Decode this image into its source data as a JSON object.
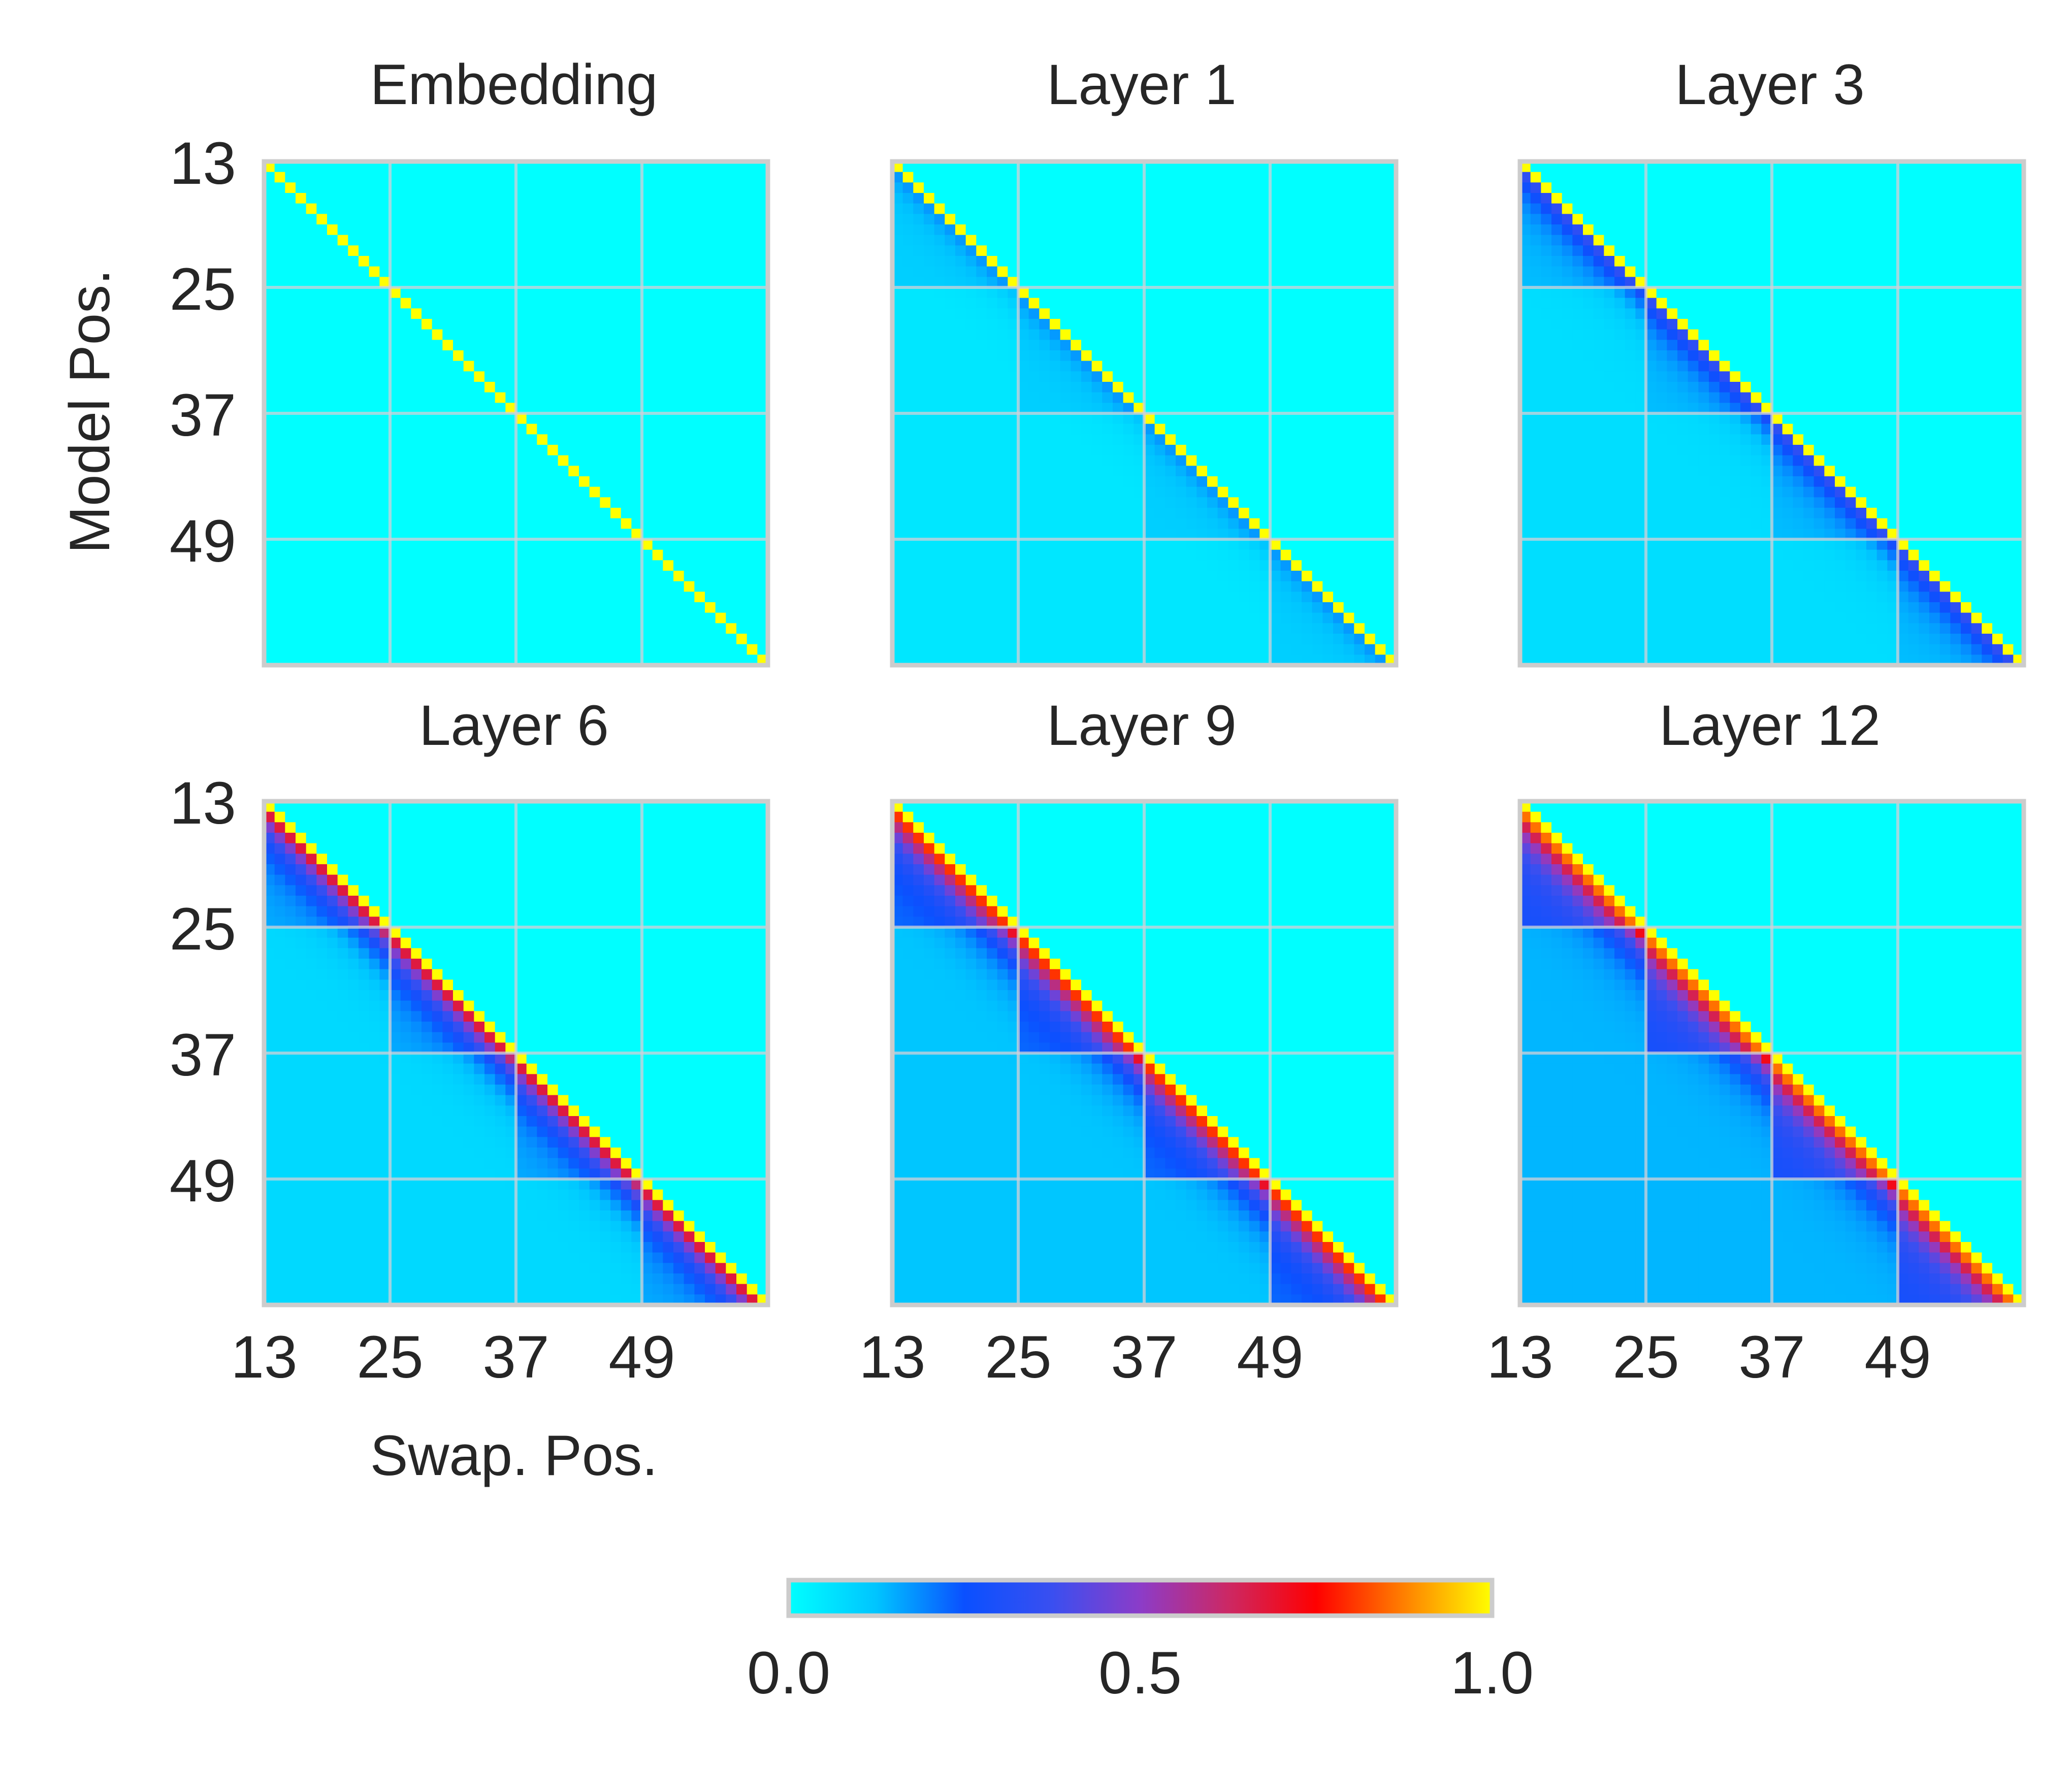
{
  "colors": {
    "background": "#ffffff",
    "frame": "#cccccc",
    "grid": "#d0d0d8",
    "text": "#262626",
    "colormap": [
      "#00ffff",
      "#00c4ff",
      "#0a50ff",
      "#3a4ff0",
      "#8c3cc8",
      "#cc2864",
      "#ff0000",
      "#ff8000",
      "#ffff00"
    ]
  },
  "chart_data": {
    "type": "heatmap",
    "x_label": "Swap. Pos.",
    "y_label": "Model Pos.",
    "positions_range": [
      13,
      60
    ],
    "x_ticks": [
      "13",
      "25",
      "37",
      "49"
    ],
    "y_ticks": [
      "13",
      "25",
      "37",
      "49"
    ],
    "colorbar": {
      "range": [
        0.0,
        1.0
      ],
      "ticks": [
        "0.0",
        "0.5",
        "1.0"
      ]
    },
    "panels": [
      {
        "title": "Embedding",
        "diag": 1.0,
        "near": 0.0,
        "far": 0.0,
        "block": 0.0
      },
      {
        "title": "Layer 1",
        "diag": 1.0,
        "near": 0.12,
        "far": 0.05,
        "block": 0.05
      },
      {
        "title": "Layer 3",
        "diag": 1.0,
        "near": 0.28,
        "far": 0.07,
        "block": 0.06
      },
      {
        "title": "Layer 6",
        "diag": 1.0,
        "near": 0.6,
        "far": 0.08,
        "block": 0.07
      },
      {
        "title": "Layer 9",
        "diag": 1.0,
        "near": 0.7,
        "far": 0.12,
        "block": 0.1
      },
      {
        "title": "Layer 12",
        "diag": 1.0,
        "near": 0.72,
        "far": 0.14,
        "block": 0.14
      }
    ]
  }
}
